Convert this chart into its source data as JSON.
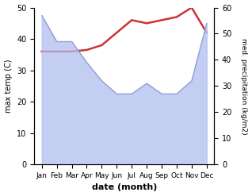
{
  "months": [
    "Jan",
    "Feb",
    "Mar",
    "Apr",
    "May",
    "Jun",
    "Jul",
    "Aug",
    "Sep",
    "Oct",
    "Nov",
    "Dec"
  ],
  "x": [
    0,
    1,
    2,
    3,
    4,
    5,
    6,
    7,
    8,
    9,
    10,
    11
  ],
  "precipitation": [
    57,
    47,
    47,
    39,
    32,
    27,
    27,
    31,
    27,
    27,
    32,
    54
  ],
  "temperature": [
    36,
    36,
    36,
    36.5,
    38,
    42,
    46,
    45,
    46,
    47,
    50,
    42
  ],
  "precip_fill_color": "#b0bef0",
  "precip_line_color": "#8898cc",
  "temp_color": "#cc3333",
  "temp_linewidth": 1.8,
  "ylabel_left": "max temp (C)",
  "ylabel_right": "med. precipitation (kg/m2)",
  "xlabel": "date (month)",
  "ylim_left": [
    0,
    50
  ],
  "ylim_right": [
    0,
    60
  ],
  "yticks_left": [
    0,
    10,
    20,
    30,
    40,
    50
  ],
  "yticks_right": [
    0,
    10,
    20,
    30,
    40,
    50,
    60
  ],
  "background_color": "#ffffff",
  "fill_alpha": 0.75
}
